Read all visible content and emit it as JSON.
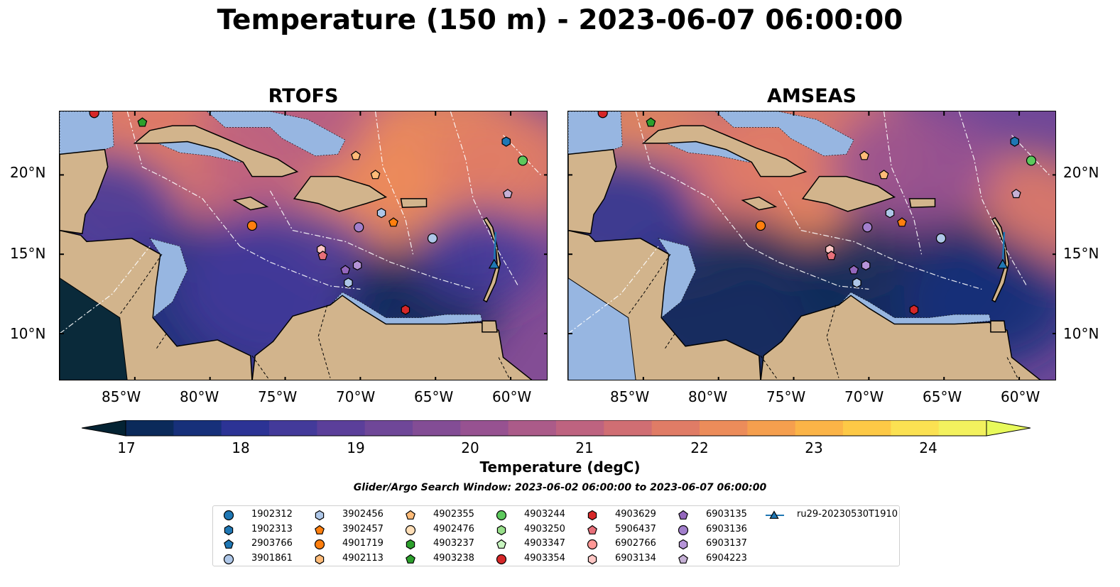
{
  "title": "Temperature (150 m) - 2023-06-07 06:00:00",
  "panels": [
    {
      "key": "rtofs",
      "title": "RTOFS"
    },
    {
      "key": "amseas",
      "title": "AMSEAS"
    }
  ],
  "axes": {
    "lon_ticks": [
      "85°W",
      "80°W",
      "75°W",
      "70°W",
      "65°W",
      "60°W"
    ],
    "lat_ticks": [
      "20°N",
      "15°N",
      "10°N"
    ],
    "lon_range": [
      -90,
      -57.5
    ],
    "lat_range": [
      7,
      24
    ]
  },
  "colorbar": {
    "label": "Temperature (degC)",
    "min": 17,
    "max": 24.5,
    "step": 0.5,
    "ticks": [
      "17",
      "18",
      "19",
      "20",
      "21",
      "22",
      "23",
      "24"
    ],
    "colors": [
      "#042333",
      "#0b2a5a",
      "#17307a",
      "#2c3395",
      "#433a9a",
      "#5b3f9a",
      "#6f4798",
      "#834d95",
      "#975291",
      "#ab5b89",
      "#be6380",
      "#d06e73",
      "#e07c66",
      "#ec8c5a",
      "#f59f4e",
      "#fbb447",
      "#fdc946",
      "#fbe152",
      "#f3f15e",
      "#e8fa5b"
    ],
    "under_color": "#042333",
    "over_color": "#e8fa5b"
  },
  "search_window": "Glider/Argo Search Window: 2023-06-02 06:00:00 to 2023-06-07 06:00:00",
  "legend": [
    {
      "label": "1902312",
      "shape": "circle",
      "color": "#1f77b4"
    },
    {
      "label": "1902313",
      "shape": "hexagon",
      "color": "#1f77b4"
    },
    {
      "label": "2903766",
      "shape": "pentagon",
      "color": "#1f77b4"
    },
    {
      "label": "3901861",
      "shape": "circle",
      "color": "#aec7e8"
    },
    {
      "label": "3902456",
      "shape": "hexagon",
      "color": "#aec7e8"
    },
    {
      "label": "3902457",
      "shape": "pentagon",
      "color": "#ff7f0e"
    },
    {
      "label": "4901719",
      "shape": "circle",
      "color": "#ff7f0e"
    },
    {
      "label": "4902113",
      "shape": "hexagon",
      "color": "#ffbb78"
    },
    {
      "label": "4902355",
      "shape": "pentagon",
      "color": "#ffbb78"
    },
    {
      "label": "4902476",
      "shape": "circle",
      "color": "#ffdfb8"
    },
    {
      "label": "4903237",
      "shape": "hexagon",
      "color": "#2ca02c"
    },
    {
      "label": "4903238",
      "shape": "pentagon",
      "color": "#2ca02c"
    },
    {
      "label": "4903244",
      "shape": "circle",
      "color": "#5cc95c"
    },
    {
      "label": "4903250",
      "shape": "hexagon",
      "color": "#98df8a"
    },
    {
      "label": "4903347",
      "shape": "pentagon",
      "color": "#c8f5c0"
    },
    {
      "label": "4903354",
      "shape": "circle",
      "color": "#d62728"
    },
    {
      "label": "4903629",
      "shape": "hexagon",
      "color": "#d62728"
    },
    {
      "label": "5906437",
      "shape": "pentagon",
      "color": "#e8707a"
    },
    {
      "label": "6902766",
      "shape": "circle",
      "color": "#ff9896"
    },
    {
      "label": "6903134",
      "shape": "hexagon",
      "color": "#ffc7c5"
    },
    {
      "label": "6903135",
      "shape": "pentagon",
      "color": "#9467bd"
    },
    {
      "label": "6903136",
      "shape": "circle",
      "color": "#a27fcc"
    },
    {
      "label": "6903137",
      "shape": "hexagon",
      "color": "#b694d8"
    },
    {
      "label": "6904223",
      "shape": "pentagon",
      "color": "#c5b0d5"
    },
    {
      "label": "ru29-20230530T1910",
      "shape": "triangle-line",
      "color": "#1f77b4"
    }
  ],
  "glider_track": {
    "label": "ru29-20230530T1910",
    "lon": [
      -61.0,
      -61.1
    ],
    "lat": [
      16.4,
      14.3
    ]
  },
  "platforms": [
    {
      "id": "4903354",
      "lon": -87.7,
      "lat": 23.9
    },
    {
      "id": "4903238",
      "lon": -84.5,
      "lat": 23.3
    },
    {
      "id": "1902313",
      "lon": -60.3,
      "lat": 22.1
    },
    {
      "id": "4903244",
      "lon": -59.2,
      "lat": 20.9
    },
    {
      "id": "4902355",
      "lon": -70.3,
      "lat": 21.2
    },
    {
      "id": "4902355",
      "lon": -69.0,
      "lat": 20.0
    },
    {
      "id": "6904223",
      "lon": -60.2,
      "lat": 18.8
    },
    {
      "id": "3902456",
      "lon": -68.6,
      "lat": 17.6
    },
    {
      "id": "3902457",
      "lon": -67.8,
      "lat": 17.0
    },
    {
      "id": "6903136",
      "lon": -70.1,
      "lat": 16.7
    },
    {
      "id": "4901719",
      "lon": -77.2,
      "lat": 16.8
    },
    {
      "id": "3901861",
      "lon": -65.2,
      "lat": 16.0
    },
    {
      "id": "6903134",
      "lon": -72.6,
      "lat": 15.3
    },
    {
      "id": "5906437",
      "lon": -72.5,
      "lat": 14.9
    },
    {
      "id": "6903137",
      "lon": -70.2,
      "lat": 14.3
    },
    {
      "id": "6903135",
      "lon": -71.0,
      "lat": 14.0
    },
    {
      "id": "3902456",
      "lon": -70.8,
      "lat": 13.2
    },
    {
      "id": "4903629",
      "lon": -67.0,
      "lat": 11.5
    }
  ]
}
